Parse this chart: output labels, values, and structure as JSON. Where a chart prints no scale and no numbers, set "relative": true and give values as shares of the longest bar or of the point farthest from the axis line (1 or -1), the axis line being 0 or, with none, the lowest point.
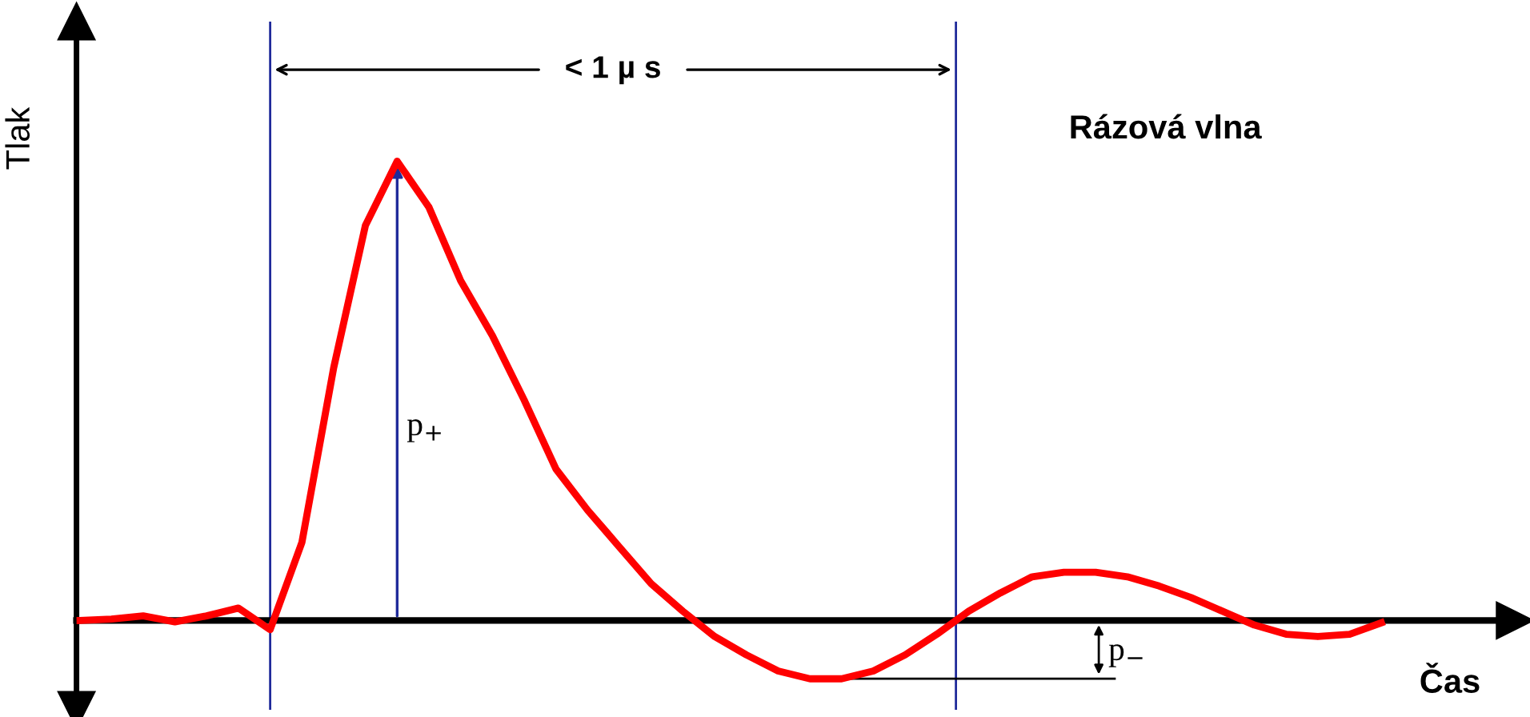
{
  "chart_data": {
    "type": "line",
    "title": "Rázová vlna",
    "xlabel": "Čas",
    "ylabel": "Tlak",
    "relative": true,
    "marker": "none",
    "line_style": "solid",
    "categories": [
      null,
      null,
      null,
      null,
      null,
      null,
      null,
      null,
      null,
      null,
      null,
      null,
      null,
      null,
      null,
      null,
      null,
      null,
      null,
      null,
      null,
      null,
      null,
      null,
      null,
      null,
      null,
      null,
      null,
      null,
      null,
      null,
      null,
      null,
      null,
      null,
      null,
      null,
      null,
      null,
      null,
      null
    ],
    "series": [
      {
        "color": "#ff0000",
        "values": [
          0,
          0.003,
          0.01,
          -0.003,
          0.01,
          0.027,
          -0.02,
          0.17,
          0.55,
          0.86,
          1.0,
          0.9,
          0.74,
          0.62,
          0.48,
          0.33,
          0.24,
          0.16,
          0.08,
          0.02,
          -0.035,
          -0.075,
          -0.11,
          -0.127,
          -0.127,
          -0.11,
          -0.075,
          -0.03,
          0.02,
          0.06,
          0.095,
          0.105,
          0.105,
          0.095,
          0.075,
          0.05,
          0.02,
          -0.01,
          -0.03,
          -0.035,
          -0.03,
          -0.005
        ]
      }
    ],
    "annotations": [
      "< 1 µ s",
      "p$_{+}$",
      "p$_{−}$"
    ]
  }
}
